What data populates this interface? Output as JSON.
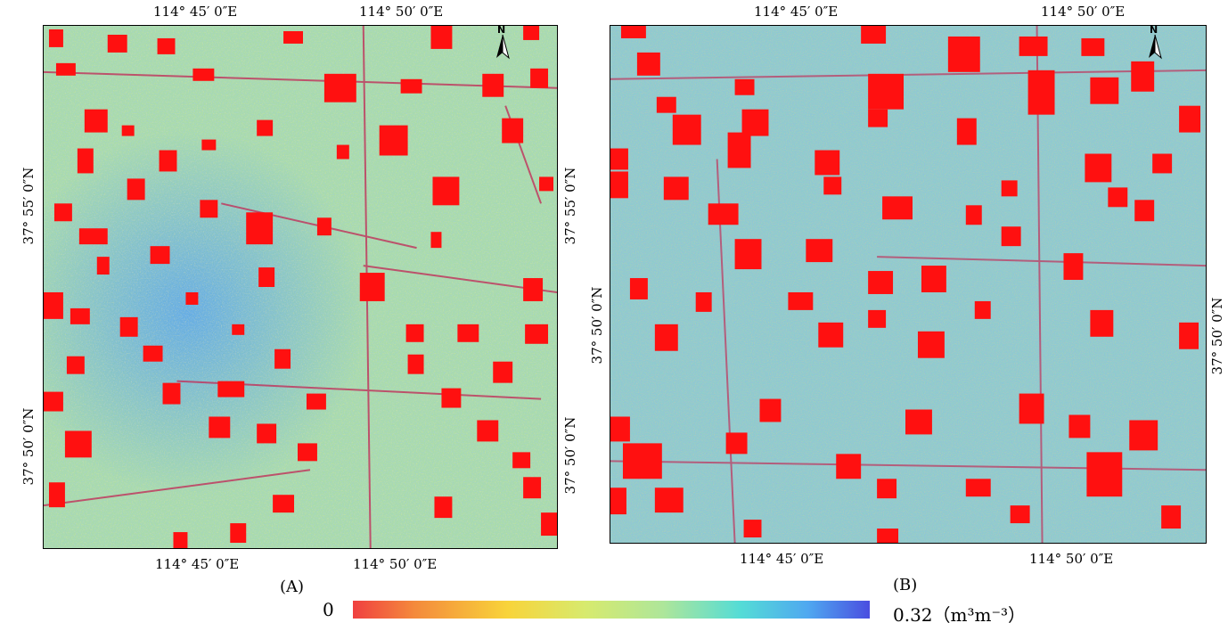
{
  "panels": [
    {
      "letter": "(A)",
      "top_lon_labels": [
        "114°  45′ 0″E",
        "114°  50′ 0″E"
      ],
      "bottom_lon_labels": [
        "114°  45′ 0″E",
        "114°  50′ 0″E"
      ],
      "left_lat_labels": [
        "37°  55′ 0″N",
        "37°  50′ 0″N"
      ],
      "right_lat_labels": [
        "37°  55′ 0″N",
        "37°  50′ 0″N"
      ],
      "north_letter": "N"
    },
    {
      "letter": "(B)",
      "top_lon_labels": [
        "114°  45′ 0″E",
        "114°  50′ 0″E"
      ],
      "bottom_lon_labels": [
        "114°  45′ 0″E",
        "114°  50′ 0″E"
      ],
      "left_lat_labels": [
        "37°  50′ 0″N"
      ],
      "right_lat_labels": [
        "37°  50′ 0″N"
      ],
      "north_letter": "N"
    }
  ],
  "legend": {
    "min_label": "0",
    "max_label": "0.32（m³m⁻³）",
    "colors": [
      "#f04040",
      "#f48a3c",
      "#f8d43a",
      "#d7ea6e",
      "#aee69a",
      "#54dcd6",
      "#4fa8f0",
      "#4a4ee0"
    ],
    "settlement_color": "#ff0000"
  }
}
